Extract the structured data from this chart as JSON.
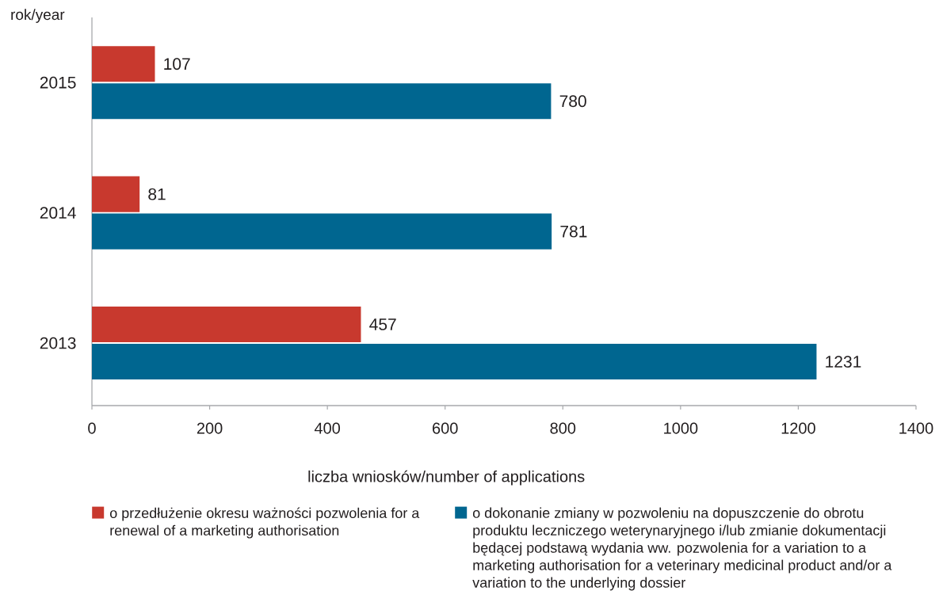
{
  "chart_data": {
    "type": "bar",
    "orientation": "horizontal",
    "xlabel": "liczba wniosków/number of applications",
    "ylabel": "rok/year",
    "categories": [
      "2015",
      "2014",
      "2013"
    ],
    "series": [
      {
        "name": "o przedłużenie okresu ważności pozwolenia for a renewal of a marketing authorisation",
        "color": "#c8392e",
        "values": [
          107,
          81,
          457
        ]
      },
      {
        "name": "o dokonanie zmiany w pozwoleniu na dopuszczenie do obrotu produktu leczniczego weterynaryjnego i/lub zmianie dokumentacji będącej podstawą wydania ww. pozwolenia for a variation to a marketing authorisation for a veterinary medicinal product and/or a variation to the underlying dossier",
        "color": "#006690",
        "values": [
          780,
          781,
          1231
        ]
      }
    ],
    "xlim": [
      0,
      1400
    ],
    "xticks": [
      0,
      200,
      400,
      600,
      800,
      1000,
      1200,
      1400
    ],
    "data_labels": true,
    "legend": "bottom"
  }
}
